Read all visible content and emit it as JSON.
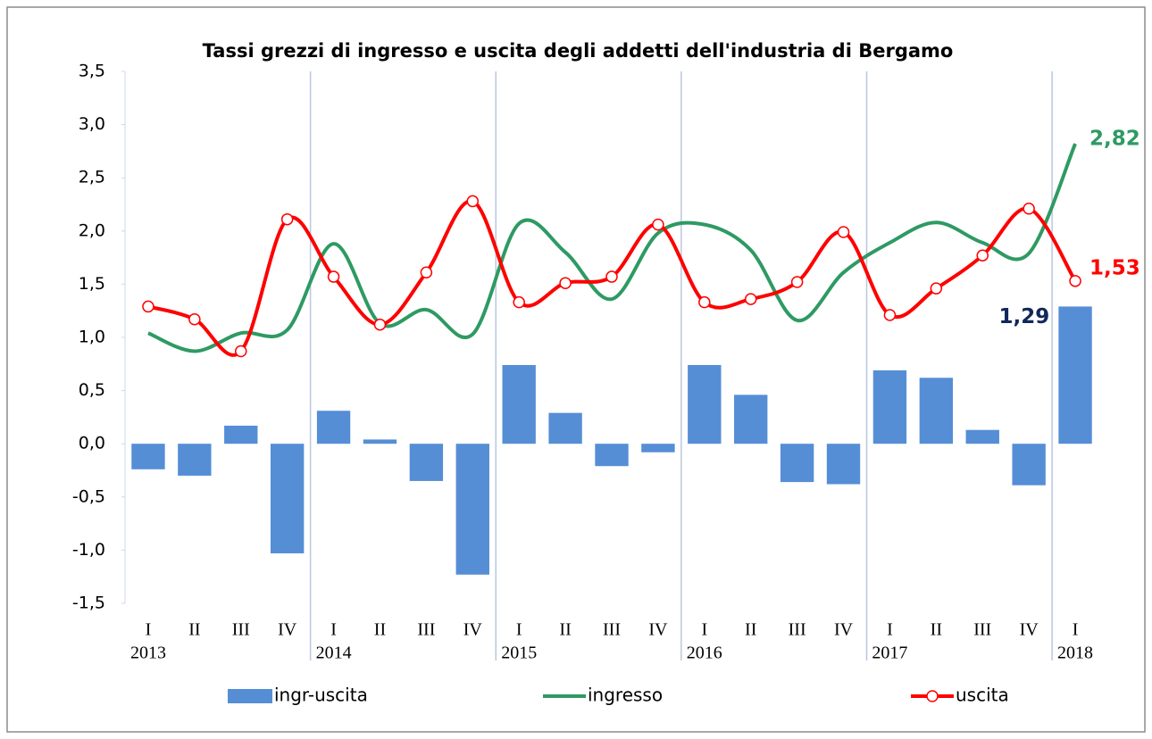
{
  "chart_data": {
    "type": "bar-line",
    "title": "Tassi grezzi di ingresso e uscita degli addetti dell'industria di Bergamo",
    "categories": [
      "I",
      "II",
      "III",
      "IV",
      "I",
      "II",
      "III",
      "IV",
      "I",
      "II",
      "III",
      "IV",
      "I",
      "II",
      "III",
      "IV",
      "I",
      "II",
      "III",
      "IV",
      "I"
    ],
    "years": [
      "2013",
      "2014",
      "2015",
      "2016",
      "2017",
      "2018"
    ],
    "series": [
      {
        "name": "ingr-uscita",
        "type": "bar",
        "color": "#558ed5",
        "values": [
          -0.24,
          -0.3,
          0.17,
          -1.03,
          0.31,
          0.04,
          -0.35,
          -1.23,
          0.74,
          0.29,
          -0.21,
          -0.08,
          0.74,
          0.46,
          -0.36,
          -0.38,
          0.69,
          0.62,
          0.13,
          -0.39,
          1.29
        ],
        "value_labels": [
          null,
          null,
          null,
          null,
          null,
          null,
          null,
          null,
          null,
          null,
          null,
          null,
          null,
          null,
          null,
          null,
          null,
          null,
          null,
          null,
          "1,29"
        ],
        "label_color": "#10285a"
      },
      {
        "name": "ingresso",
        "type": "line",
        "color": "#2e9a63",
        "markers": false,
        "values": [
          1.04,
          0.87,
          1.04,
          1.07,
          1.88,
          1.13,
          1.26,
          1.03,
          2.07,
          1.8,
          1.36,
          1.98,
          2.06,
          1.82,
          1.16,
          1.61,
          1.89,
          2.08,
          1.89,
          1.79,
          2.82
        ],
        "value_labels": [
          null,
          null,
          null,
          null,
          null,
          null,
          null,
          null,
          null,
          null,
          null,
          null,
          null,
          null,
          null,
          null,
          null,
          null,
          null,
          null,
          "2,82"
        ]
      },
      {
        "name": "uscita",
        "type": "line",
        "color": "#ff0000",
        "markers": true,
        "values": [
          1.29,
          1.17,
          0.87,
          2.11,
          1.57,
          1.12,
          1.61,
          2.28,
          1.33,
          1.51,
          1.57,
          2.06,
          1.33,
          1.36,
          1.52,
          1.99,
          1.21,
          1.46,
          1.77,
          2.21,
          1.53
        ],
        "value_labels": [
          null,
          null,
          null,
          null,
          null,
          null,
          null,
          null,
          null,
          null,
          null,
          null,
          null,
          null,
          null,
          null,
          null,
          null,
          null,
          null,
          "1,53"
        ]
      }
    ],
    "ylim": [
      -1.5,
      3.5
    ],
    "yticks": [
      {
        "value": -1.5,
        "label": "-1,5"
      },
      {
        "value": -1,
        "label": "-1,0"
      },
      {
        "value": -0.5,
        "label": "-0,5"
      },
      {
        "value": 0,
        "label": "0,0"
      },
      {
        "value": 0.5,
        "label": "0,5"
      },
      {
        "value": 1,
        "label": "1,0"
      },
      {
        "value": 1.5,
        "label": "1,5"
      },
      {
        "value": 2,
        "label": "2,0"
      },
      {
        "value": 2.5,
        "label": "2,5"
      },
      {
        "value": 3,
        "label": "3,0"
      },
      {
        "value": 3.5,
        "label": "3,5"
      }
    ],
    "legend": "bottom",
    "smooth": true
  }
}
